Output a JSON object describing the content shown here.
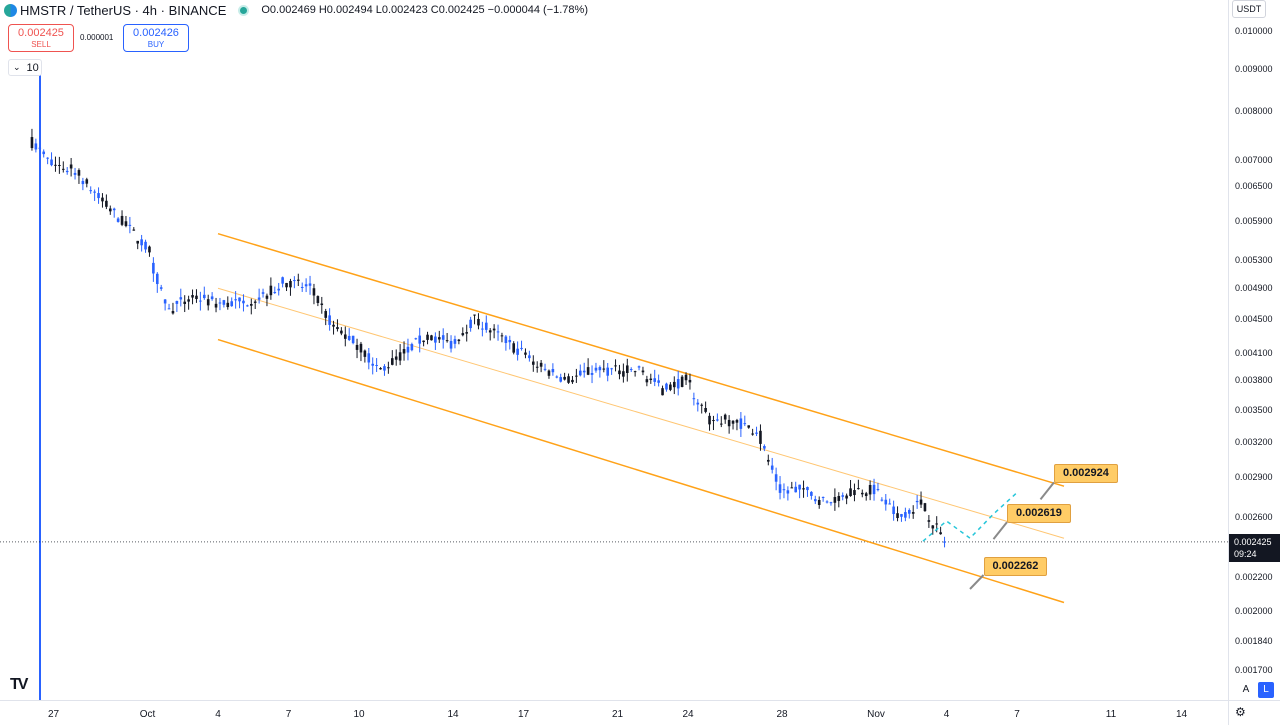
{
  "header": {
    "symbol": "HMSTR / TetherUS · 4h · BINANCE",
    "ohlc": "O0.002469 H0.002494 L0.002423 C0.002425 −0.000044 (−1.78%)"
  },
  "trade": {
    "sell_price": "0.002425",
    "sell_label": "SELL",
    "spread": "0.000001",
    "buy_price": "0.002426",
    "buy_label": "BUY",
    "quantity": "10"
  },
  "currency_button": "USDT",
  "current_price_tag": {
    "price": "0.002425",
    "countdown": "09:24"
  },
  "price_ticks": [
    "0.010000",
    "0.009000",
    "0.008000",
    "0.007000",
    "0.006500",
    "0.005900",
    "0.005300",
    "0.004900",
    "0.004500",
    "0.004100",
    "0.003800",
    "0.003500",
    "0.003200",
    "0.002900",
    "0.002600",
    "0.002200",
    "0.002000",
    "0.001840",
    "0.001700"
  ],
  "time_ticks": [
    "27",
    "Oct",
    "4",
    "7",
    "10",
    "14",
    "17",
    "21",
    "24",
    "28",
    "Nov",
    "4",
    "7",
    "11",
    "14"
  ],
  "scale_buttons": {
    "auto": "A",
    "log": "L"
  },
  "colors": {
    "up": "#2962ff",
    "down": "#131722",
    "channel": "#ff9800",
    "projection": "#26c6da",
    "label_bg": "#ffcc66",
    "accent": "#2962ff"
  },
  "chart_data": {
    "type": "candlestick",
    "timeframe": "4h",
    "exchange": "BINANCE",
    "pair": "HMSTR / TetherUS",
    "y_scale": "log",
    "ylim": [
      0.0016,
      0.0105
    ],
    "x_start": "2024-09-26",
    "x_end": "2024-11-14",
    "current_price": 0.002425,
    "daily_closes": [
      {
        "date": "2024-09-26",
        "close": 0.0069
      },
      {
        "date": "2024-09-27",
        "close": 0.0068
      },
      {
        "date": "2024-09-28",
        "close": 0.0063
      },
      {
        "date": "2024-09-29",
        "close": 0.0059
      },
      {
        "date": "2024-09-30",
        "close": 0.0055
      },
      {
        "date": "2024-10-01",
        "close": 0.0046
      },
      {
        "date": "2024-10-02",
        "close": 0.0048
      },
      {
        "date": "2024-10-03",
        "close": 0.0047
      },
      {
        "date": "2024-10-04",
        "close": 0.0047
      },
      {
        "date": "2024-10-05",
        "close": 0.0048
      },
      {
        "date": "2024-10-06",
        "close": 0.005
      },
      {
        "date": "2024-10-07",
        "close": 0.0049
      },
      {
        "date": "2024-10-08",
        "close": 0.0044
      },
      {
        "date": "2024-10-09",
        "close": 0.0042
      },
      {
        "date": "2024-10-10",
        "close": 0.0039
      },
      {
        "date": "2024-10-11",
        "close": 0.0041
      },
      {
        "date": "2024-10-12",
        "close": 0.0043
      },
      {
        "date": "2024-10-13",
        "close": 0.0042
      },
      {
        "date": "2024-10-14",
        "close": 0.0045
      },
      {
        "date": "2024-10-15",
        "close": 0.0043
      },
      {
        "date": "2024-10-16",
        "close": 0.0041
      },
      {
        "date": "2024-10-17",
        "close": 0.0039
      },
      {
        "date": "2024-10-18",
        "close": 0.0038
      },
      {
        "date": "2024-10-19",
        "close": 0.0039
      },
      {
        "date": "2024-10-20",
        "close": 0.0039
      },
      {
        "date": "2024-10-21",
        "close": 0.0039
      },
      {
        "date": "2024-10-22",
        "close": 0.0037
      },
      {
        "date": "2024-10-23",
        "close": 0.0038
      },
      {
        "date": "2024-10-24",
        "close": 0.0034
      },
      {
        "date": "2024-10-25",
        "close": 0.0034
      },
      {
        "date": "2024-10-26",
        "close": 0.0033
      },
      {
        "date": "2024-10-27",
        "close": 0.0028
      },
      {
        "date": "2024-10-28",
        "close": 0.0028
      },
      {
        "date": "2024-10-29",
        "close": 0.0027
      },
      {
        "date": "2024-10-30",
        "close": 0.0028
      },
      {
        "date": "2024-10-31",
        "close": 0.0028
      },
      {
        "date": "2024-11-01",
        "close": 0.0026
      },
      {
        "date": "2024-11-02",
        "close": 0.0027
      },
      {
        "date": "2024-11-03",
        "close": 0.00243
      }
    ],
    "channel": {
      "upper": [
        {
          "date": "2024-10-04",
          "price": 0.0057
        },
        {
          "date": "2024-11-09",
          "price": 0.00283
        }
      ],
      "middle": [
        {
          "date": "2024-10-04",
          "price": 0.0049
        },
        {
          "date": "2024-11-09",
          "price": 0.00245
        }
      ],
      "lower": [
        {
          "date": "2024-10-04",
          "price": 0.00425
        },
        {
          "date": "2024-11-09",
          "price": 0.00205
        }
      ]
    },
    "projection": [
      {
        "date": "2024-11-03",
        "price": 0.00243
      },
      {
        "date": "2024-11-04",
        "price": 0.00257
      },
      {
        "date": "2024-11-05",
        "price": 0.00245
      },
      {
        "date": "2024-11-06",
        "price": 0.00262
      },
      {
        "date": "2024-11-07",
        "price": 0.00278
      }
    ],
    "targets": [
      {
        "label": "0.002924",
        "value": 0.002924
      },
      {
        "label": "0.002619",
        "value": 0.002619
      },
      {
        "label": "0.002262",
        "value": 0.002262
      }
    ]
  }
}
